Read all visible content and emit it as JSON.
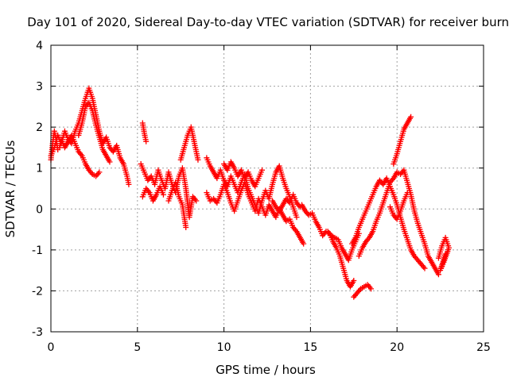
{
  "chart_data": {
    "type": "scatter",
    "title": "Day 101 of 2020, Sidereal Day-to-day VTEC variation (SDTVAR) for receiver burn",
    "xlabel": "GPS time / hours",
    "ylabel": "SDTVAR / TECUs",
    "xlim": [
      0,
      25
    ],
    "ylim": [
      -3,
      4
    ],
    "xticks": [
      0,
      5,
      10,
      15,
      20,
      25
    ],
    "yticks": [
      -3,
      -2,
      -1,
      0,
      1,
      2,
      3,
      4
    ],
    "grid": true,
    "marker": "+",
    "color": "#ff0000",
    "series": [
      {
        "name": "SDTVAR",
        "segments": [
          [
            [
              0.0,
              1.3
            ],
            [
              0.2,
              1.5
            ],
            [
              0.4,
              1.8
            ],
            [
              0.6,
              1.6
            ],
            [
              0.8,
              1.9
            ],
            [
              1.0,
              1.7
            ],
            [
              1.2,
              1.6
            ],
            [
              1.4,
              1.9
            ],
            [
              1.6,
              2.1
            ],
            [
              1.8,
              2.4
            ],
            [
              2.0,
              2.7
            ],
            [
              2.2,
              2.95
            ],
            [
              2.4,
              2.7
            ],
            [
              2.6,
              2.3
            ],
            [
              2.8,
              1.9
            ],
            [
              3.0,
              1.6
            ],
            [
              3.2,
              1.75
            ],
            [
              3.4,
              1.5
            ],
            [
              3.6,
              1.4
            ],
            [
              3.8,
              1.55
            ],
            [
              4.0,
              1.25
            ],
            [
              4.2,
              1.1
            ],
            [
              4.4,
              0.8
            ],
            [
              4.5,
              0.6
            ]
          ],
          [
            [
              0.0,
              1.2
            ],
            [
              0.1,
              1.6
            ],
            [
              0.2,
              1.9
            ],
            [
              0.3,
              1.7
            ],
            [
              0.4,
              1.45
            ],
            [
              0.5,
              1.5
            ],
            [
              0.6,
              1.7
            ],
            [
              0.8,
              1.5
            ],
            [
              1.0,
              1.65
            ],
            [
              1.2,
              1.8
            ],
            [
              1.4,
              1.6
            ],
            [
              1.6,
              1.4
            ],
            [
              1.8,
              1.3
            ],
            [
              2.0,
              1.1
            ],
            [
              2.2,
              0.95
            ],
            [
              2.4,
              0.85
            ],
            [
              2.6,
              0.8
            ],
            [
              2.8,
              0.9
            ]
          ],
          [
            [
              1.6,
              1.8
            ],
            [
              1.8,
              2.1
            ],
            [
              2.0,
              2.5
            ],
            [
              2.2,
              2.6
            ],
            [
              2.4,
              2.4
            ],
            [
              2.6,
              2.05
            ],
            [
              2.8,
              1.75
            ],
            [
              3.0,
              1.45
            ],
            [
              3.2,
              1.3
            ],
            [
              3.4,
              1.15
            ]
          ],
          [
            [
              5.3,
              2.1
            ],
            [
              5.4,
              1.85
            ],
            [
              5.5,
              1.65
            ]
          ],
          [
            [
              5.2,
              1.1
            ],
            [
              5.4,
              0.9
            ],
            [
              5.6,
              0.7
            ],
            [
              5.8,
              0.8
            ],
            [
              6.0,
              0.6
            ],
            [
              6.2,
              0.95
            ],
            [
              6.4,
              0.7
            ],
            [
              6.6,
              0.5
            ],
            [
              6.8,
              0.9
            ],
            [
              7.0,
              0.6
            ],
            [
              7.2,
              0.4
            ],
            [
              7.4,
              0.8
            ],
            [
              7.6,
              1.0
            ],
            [
              7.8,
              0.5
            ],
            [
              8.0,
              -0.2
            ],
            [
              8.2,
              0.3
            ],
            [
              8.4,
              0.2
            ]
          ],
          [
            [
              5.3,
              0.3
            ],
            [
              5.5,
              0.5
            ],
            [
              5.7,
              0.4
            ],
            [
              5.9,
              0.2
            ],
            [
              6.1,
              0.35
            ],
            [
              6.3,
              0.55
            ],
            [
              6.5,
              0.35
            ]
          ],
          [
            [
              6.8,
              0.2
            ],
            [
              7.0,
              0.45
            ],
            [
              7.2,
              0.65
            ],
            [
              7.4,
              0.3
            ],
            [
              7.6,
              0.1
            ],
            [
              7.8,
              -0.45
            ]
          ],
          [
            [
              7.5,
              1.2
            ],
            [
              7.7,
              1.5
            ],
            [
              7.9,
              1.8
            ],
            [
              8.1,
              2.0
            ],
            [
              8.3,
              1.6
            ],
            [
              8.5,
              1.2
            ]
          ],
          [
            [
              9.0,
              1.25
            ],
            [
              9.2,
              1.05
            ],
            [
              9.4,
              0.9
            ],
            [
              9.6,
              0.75
            ],
            [
              9.8,
              0.95
            ],
            [
              10.0,
              0.7
            ],
            [
              10.2,
              0.55
            ],
            [
              10.4,
              0.8
            ],
            [
              10.6,
              0.6
            ],
            [
              10.8,
              0.4
            ],
            [
              11.0,
              0.65
            ],
            [
              11.2,
              0.85
            ],
            [
              11.4,
              0.5
            ],
            [
              11.6,
              0.3
            ],
            [
              11.8,
              0.1
            ],
            [
              12.0,
              -0.1
            ],
            [
              12.2,
              0.2
            ],
            [
              12.4,
              0.45
            ],
            [
              12.6,
              0.25
            ],
            [
              12.8,
              0.6
            ],
            [
              13.0,
              0.9
            ],
            [
              13.2,
              1.05
            ],
            [
              13.4,
              0.75
            ],
            [
              13.6,
              0.5
            ],
            [
              13.8,
              0.3
            ],
            [
              14.0,
              0.05
            ],
            [
              14.2,
              -0.2
            ]
          ],
          [
            [
              9.0,
              0.4
            ],
            [
              9.2,
              0.2
            ],
            [
              9.4,
              0.25
            ],
            [
              9.6,
              0.15
            ],
            [
              9.8,
              0.35
            ],
            [
              10.0,
              0.6
            ],
            [
              10.2,
              0.4
            ],
            [
              10.4,
              0.15
            ],
            [
              10.6,
              -0.05
            ],
            [
              10.8,
              0.2
            ],
            [
              11.0,
              0.45
            ],
            [
              11.2,
              0.65
            ],
            [
              11.4,
              0.35
            ],
            [
              11.6,
              0.15
            ],
            [
              11.8,
              -0.05
            ],
            [
              12.0,
              0.25
            ],
            [
              12.2,
              0.05
            ],
            [
              12.4,
              -0.15
            ],
            [
              12.6,
              0.1
            ],
            [
              12.8,
              -0.05
            ],
            [
              13.0,
              -0.2
            ],
            [
              13.2,
              0.0
            ],
            [
              13.4,
              -0.15
            ],
            [
              13.6,
              -0.3
            ],
            [
              13.8,
              -0.25
            ],
            [
              14.0,
              -0.45
            ],
            [
              14.2,
              -0.55
            ],
            [
              14.4,
              -0.7
            ],
            [
              14.6,
              -0.85
            ]
          ],
          [
            [
              10.0,
              1.1
            ],
            [
              10.2,
              0.95
            ],
            [
              10.4,
              1.15
            ],
            [
              10.6,
              1.0
            ],
            [
              10.8,
              0.8
            ],
            [
              11.0,
              0.95
            ],
            [
              11.2,
              0.75
            ],
            [
              11.4,
              0.9
            ],
            [
              11.6,
              0.7
            ],
            [
              11.8,
              0.55
            ],
            [
              12.0,
              0.75
            ],
            [
              12.2,
              0.95
            ]
          ],
          [
            [
              12.8,
              0.2
            ],
            [
              13.0,
              0.05
            ],
            [
              13.2,
              -0.05
            ],
            [
              13.4,
              0.1
            ],
            [
              13.6,
              0.25
            ],
            [
              13.8,
              0.15
            ],
            [
              14.0,
              0.35
            ],
            [
              14.2,
              0.15
            ],
            [
              14.4,
              0.05
            ]
          ],
          [
            [
              14.5,
              0.1
            ],
            [
              14.7,
              -0.05
            ],
            [
              14.9,
              -0.15
            ],
            [
              15.1,
              -0.1
            ],
            [
              15.3,
              -0.3
            ],
            [
              15.5,
              -0.45
            ],
            [
              15.7,
              -0.65
            ],
            [
              15.9,
              -0.55
            ],
            [
              16.1,
              -0.6
            ],
            [
              16.3,
              -0.8
            ],
            [
              16.5,
              -0.95
            ],
            [
              16.7,
              -1.15
            ],
            [
              16.9,
              -1.45
            ],
            [
              17.1,
              -1.75
            ],
            [
              17.3,
              -1.9
            ],
            [
              17.5,
              -1.75
            ]
          ],
          [
            [
              16.0,
              -0.55
            ],
            [
              16.2,
              -0.65
            ],
            [
              16.4,
              -0.7
            ],
            [
              16.6,
              -0.75
            ],
            [
              16.8,
              -0.95
            ],
            [
              17.0,
              -1.1
            ],
            [
              17.2,
              -1.25
            ],
            [
              17.4,
              -1.0
            ],
            [
              17.6,
              -0.8
            ],
            [
              17.8,
              -0.6
            ]
          ],
          [
            [
              17.5,
              -2.15
            ],
            [
              17.7,
              -2.05
            ],
            [
              17.9,
              -1.95
            ],
            [
              18.1,
              -1.9
            ],
            [
              18.3,
              -1.85
            ],
            [
              18.5,
              -1.95
            ]
          ],
          [
            [
              17.4,
              -0.85
            ],
            [
              17.6,
              -0.7
            ],
            [
              17.8,
              -0.45
            ],
            [
              18.0,
              -0.25
            ],
            [
              18.2,
              -0.05
            ],
            [
              18.4,
              0.15
            ],
            [
              18.6,
              0.35
            ],
            [
              18.8,
              0.55
            ],
            [
              19.0,
              0.7
            ],
            [
              19.2,
              0.6
            ],
            [
              19.4,
              0.75
            ],
            [
              19.6,
              0.55
            ],
            [
              19.8,
              0.35
            ],
            [
              20.0,
              0.1
            ],
            [
              20.2,
              -0.2
            ],
            [
              20.4,
              -0.5
            ],
            [
              20.6,
              -0.75
            ],
            [
              20.8,
              -1.0
            ],
            [
              21.0,
              -1.15
            ],
            [
              21.2,
              -1.25
            ],
            [
              21.4,
              -1.35
            ],
            [
              21.6,
              -1.45
            ]
          ],
          [
            [
              17.8,
              -1.15
            ],
            [
              18.0,
              -0.95
            ],
            [
              18.2,
              -0.8
            ],
            [
              18.4,
              -0.7
            ],
            [
              18.6,
              -0.55
            ],
            [
              18.8,
              -0.3
            ],
            [
              19.0,
              -0.1
            ],
            [
              19.2,
              0.15
            ],
            [
              19.4,
              0.4
            ],
            [
              19.6,
              0.65
            ],
            [
              19.8,
              0.75
            ],
            [
              20.0,
              0.9
            ],
            [
              20.2,
              0.85
            ],
            [
              20.4,
              0.95
            ],
            [
              20.6,
              0.65
            ],
            [
              20.8,
              0.35
            ],
            [
              21.0,
              -0.05
            ],
            [
              21.2,
              -0.35
            ],
            [
              21.4,
              -0.6
            ],
            [
              21.6,
              -0.85
            ],
            [
              21.8,
              -1.15
            ],
            [
              22.0,
              -1.3
            ],
            [
              22.2,
              -1.45
            ],
            [
              22.4,
              -1.6
            ]
          ],
          [
            [
              19.8,
              1.1
            ],
            [
              20.0,
              1.35
            ],
            [
              20.2,
              1.65
            ],
            [
              20.4,
              1.95
            ],
            [
              20.6,
              2.1
            ],
            [
              20.8,
              2.25
            ]
          ],
          [
            [
              19.6,
              0.05
            ],
            [
              19.8,
              -0.15
            ],
            [
              20.0,
              -0.25
            ],
            [
              20.2,
              -0.05
            ],
            [
              20.4,
              0.2
            ],
            [
              20.6,
              0.4
            ]
          ],
          [
            [
              22.4,
              -1.2
            ],
            [
              22.6,
              -0.9
            ],
            [
              22.8,
              -0.7
            ],
            [
              23.0,
              -0.95
            ],
            [
              22.7,
              -1.3
            ],
            [
              22.5,
              -1.5
            ],
            [
              22.8,
              -1.1
            ]
          ]
        ]
      }
    ]
  }
}
